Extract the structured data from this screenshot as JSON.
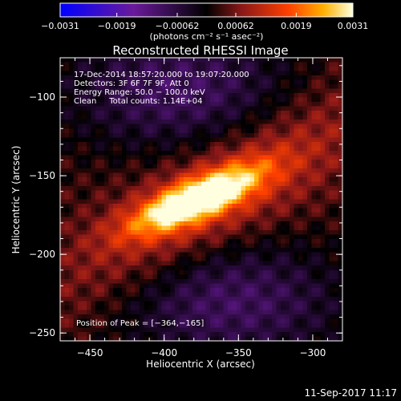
{
  "chart_data": {
    "type": "heatmap",
    "title": "Reconstructed RHESSI Image",
    "xlabel": "Heliocentric X (arcsec)",
    "ylabel": "Heliocentric Y (arcsec)",
    "xlim": [
      -470,
      -280
    ],
    "ylim": [
      -255,
      -75
    ],
    "xticks": [
      -450,
      -400,
      -350,
      -300
    ],
    "xtick_labels": [
      "−450",
      "−400",
      "−350",
      "−300"
    ],
    "yticks": [
      -100,
      -150,
      -200,
      -250
    ],
    "ytick_labels": [
      "−100",
      "−150",
      "−200",
      "−250"
    ],
    "colorbar": {
      "range": [
        -0.0031,
        0.0031
      ],
      "ticks": [
        -0.0031,
        -0.0019,
        -0.00062,
        0.00062,
        0.0019,
        0.0031
      ],
      "tick_labels": [
        "−0.0031",
        "−0.0019",
        "−0.00062",
        "0.00062",
        "0.0019",
        "0.0031"
      ],
      "unit_label": "(photons cm⁻² s⁻¹ asec⁻²)",
      "colors": [
        "#0000ff",
        "#6a1a9a",
        "#000000",
        "#8a1818",
        "#ff4000",
        "#ffb000",
        "#ffffe0"
      ]
    },
    "annotations": {
      "time_range": "17-Dec-2014 18:57:20.000 to 19:07:20.000",
      "detectors": "Detectors: 3F 6F 7F 9F, Att 0",
      "energy_range": "Energy Range: 50.0 − 100.0 keV",
      "clean_counts": "Clean     Total counts: 1.14E+04",
      "peak": "Position of Peak = [−364,−165]"
    },
    "peak_position": [
      -364,
      -165
    ],
    "sources": [
      {
        "x": -378,
        "y": -165,
        "sx": 32,
        "sy": 9,
        "rot_deg": -22,
        "amp": 0.0031
      },
      {
        "x": -365,
        "y": -163,
        "sx": 85,
        "sy": 22,
        "rot_deg": -30,
        "amp": 0.0011
      }
    ],
    "negative_lobes": [
      {
        "x": -390,
        "y": -95,
        "sx": 55,
        "sy": 28,
        "amp": -0.0012
      },
      {
        "x": -355,
        "y": -230,
        "sx": 55,
        "sy": 28,
        "amp": -0.0012
      }
    ],
    "footer_date": "11-Sep-2017 11:17"
  }
}
